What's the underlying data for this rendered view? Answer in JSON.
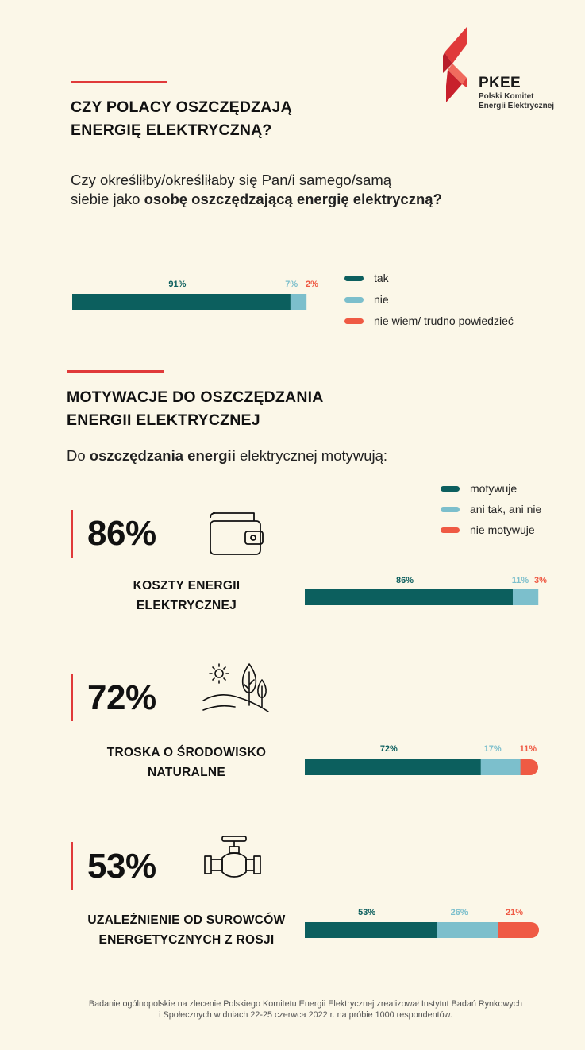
{
  "logo": {
    "name": "PKEE",
    "subtitle_lines": [
      "Polski Komitet",
      "Energii Elektrycznej"
    ]
  },
  "section1": {
    "heading_lines": [
      "CZY POLACY OSZCZĘDZAJĄ",
      "ENERGIĘ ELEKTRYCZNĄ?"
    ],
    "question_line1": "Czy określiłby/określiłaby się Pan/i samego/samą",
    "question_line2_pre": "siebie jako ",
    "question_line2_bold": "osobę oszczędzającą energię elektryczną?",
    "legend": [
      "tak",
      "nie",
      "nie wiem/ trudno powiedzieć"
    ]
  },
  "section2": {
    "heading_lines": [
      "MOTYWACJE DO OSZCZĘDZANIA",
      "ENERGII ELEKTRYCZNEJ"
    ],
    "intro_pre": "Do ",
    "intro_bold": "oszczędzania energii",
    "intro_post": " elektrycznej motywują:",
    "legend": [
      "motywuje",
      "ani tak, ani nie",
      "nie motywuje"
    ],
    "motivations": [
      {
        "big": "86%",
        "label_lines": [
          "KOSZTY ENERGII",
          "ELEKTRYCZNEJ"
        ],
        "icon": "wallet-icon"
      },
      {
        "big": "72%",
        "label_lines": [
          "TROSKA O ŚRODOWISKO",
          "NATURALNE"
        ],
        "icon": "nature-icon"
      },
      {
        "big": "53%",
        "label_lines": [
          "UZALEŻNIENIE OD SUROWCÓW",
          "ENERGETYCZNYCH Z ROSJI"
        ],
        "icon": "pipe-valve-icon"
      }
    ]
  },
  "colors": {
    "teal": "#0c5f5e",
    "light_blue": "#7cbfcc",
    "coral": "#ef5a44",
    "red_accent": "#e03a3a",
    "background": "#fbf7e8"
  },
  "chart_data": [
    {
      "type": "bar",
      "orientation": "horizontal-stacked",
      "categories": [
        ""
      ],
      "series": [
        {
          "name": "tak",
          "values": [
            91
          ]
        },
        {
          "name": "nie",
          "values": [
            7
          ]
        },
        {
          "name": "nie wiem/ trudno powiedzieć",
          "values": [
            2
          ]
        }
      ],
      "data_labels": [
        "91%",
        "7%",
        "2%"
      ]
    },
    {
      "type": "bar",
      "orientation": "horizontal-stacked",
      "categories": [
        "KOSZTY ENERGII ELEKTRYCZNEJ"
      ],
      "series": [
        {
          "name": "motywuje",
          "values": [
            86
          ]
        },
        {
          "name": "ani tak, ani nie",
          "values": [
            11
          ]
        },
        {
          "name": "nie motywuje",
          "values": [
            3
          ]
        }
      ],
      "data_labels": [
        "86%",
        "11%",
        "3%"
      ]
    },
    {
      "type": "bar",
      "orientation": "horizontal-stacked",
      "categories": [
        "TROSKA O ŚRODOWISKO NATURALNE"
      ],
      "series": [
        {
          "name": "motywuje",
          "values": [
            72
          ]
        },
        {
          "name": "ani tak, ani nie",
          "values": [
            17
          ]
        },
        {
          "name": "nie motywuje",
          "values": [
            11
          ]
        }
      ],
      "data_labels": [
        "72%",
        "17%",
        "11%"
      ]
    },
    {
      "type": "bar",
      "orientation": "horizontal-stacked",
      "categories": [
        "UZALEŻNIENIE OD SUROWCÓW ENERGETYCZNYCH Z ROSJI"
      ],
      "series": [
        {
          "name": "motywuje",
          "values": [
            53
          ]
        },
        {
          "name": "ani tak, ani nie",
          "values": [
            26
          ]
        },
        {
          "name": "nie motywuje",
          "values": [
            21
          ]
        }
      ],
      "data_labels": [
        "53%",
        "26%",
        "21%"
      ]
    }
  ],
  "footer": {
    "lines": [
      "Badanie ogólnopolskie na zlecenie Polskiego Komitetu Energii Elektrycznej zrealizował Instytut Badań Rynkowych",
      "i Społecznych w dniach 22-25 czerwca 2022 r. na próbie 1000 respondentów."
    ]
  }
}
